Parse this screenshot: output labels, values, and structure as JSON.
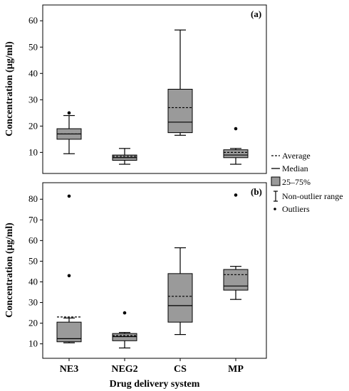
{
  "chart_data": [
    {
      "type": "box",
      "panel_label": "(a)",
      "ylabel": "Concentration (µg/ml)",
      "xlabel": "",
      "ylim": [
        2,
        66
      ],
      "yticks": [
        10,
        20,
        30,
        40,
        50,
        60
      ],
      "categories": [
        "NE3",
        "NEG2",
        "CS",
        "MP"
      ],
      "boxes": [
        {
          "category": "NE3",
          "whisker_low": 9.5,
          "q1": 15,
          "median": 17,
          "q3": 19,
          "whisker_high": 24,
          "mean": 17,
          "outliers": [
            25
          ]
        },
        {
          "category": "NEG2",
          "whisker_low": 5.5,
          "q1": 7,
          "median": 8,
          "q3": 9,
          "whisker_high": 11.5,
          "mean": 8.5,
          "outliers": []
        },
        {
          "category": "CS",
          "whisker_low": 16.5,
          "q1": 17.5,
          "median": 21.5,
          "q3": 34,
          "whisker_high": 56.5,
          "mean": 27,
          "outliers": []
        },
        {
          "category": "MP",
          "whisker_low": 5.5,
          "q1": 8,
          "median": 9,
          "q3": 11,
          "whisker_high": 11.5,
          "mean": 10,
          "outliers": [
            19
          ]
        }
      ],
      "grid": false
    },
    {
      "type": "box",
      "panel_label": "(b)",
      "ylabel": "Concentration (µg/ml)",
      "xlabel": "Drug delivery system",
      "ylim": [
        3,
        88
      ],
      "yticks": [
        10,
        20,
        30,
        40,
        50,
        60,
        70,
        80
      ],
      "categories": [
        "NE3",
        "NEG2",
        "CS",
        "MP"
      ],
      "boxes": [
        {
          "category": "NE3",
          "whisker_low": 10.5,
          "q1": 11,
          "median": 12.5,
          "q3": 20.5,
          "whisker_high": 22.5,
          "mean": 23,
          "outliers": [
            43,
            81.5
          ]
        },
        {
          "category": "NEG2",
          "whisker_low": 8,
          "q1": 11.5,
          "median": 13.5,
          "q3": 15,
          "whisker_high": 15.5,
          "mean": 14,
          "outliers": [
            25
          ]
        },
        {
          "category": "CS",
          "whisker_low": 14.5,
          "q1": 20.5,
          "median": 28.5,
          "q3": 44,
          "whisker_high": 56.5,
          "mean": 33,
          "outliers": []
        },
        {
          "category": "MP",
          "whisker_low": 31.5,
          "q1": 36,
          "median": 38,
          "q3": 46,
          "whisker_high": 47.5,
          "mean": 43.5,
          "outliers": [
            82
          ]
        }
      ],
      "grid": false
    }
  ],
  "legend": {
    "placement": "right-between-panels",
    "items": [
      {
        "key": "average",
        "label": "Average"
      },
      {
        "key": "median",
        "label": "Median"
      },
      {
        "key": "iqr",
        "label": "25–75%"
      },
      {
        "key": "range",
        "label": "Non-outlier range"
      },
      {
        "key": "outliers",
        "label": "Outliers"
      }
    ]
  },
  "colors": {
    "box_fill": "#9a9a9a",
    "line": "#000000",
    "background": "#ffffff"
  }
}
